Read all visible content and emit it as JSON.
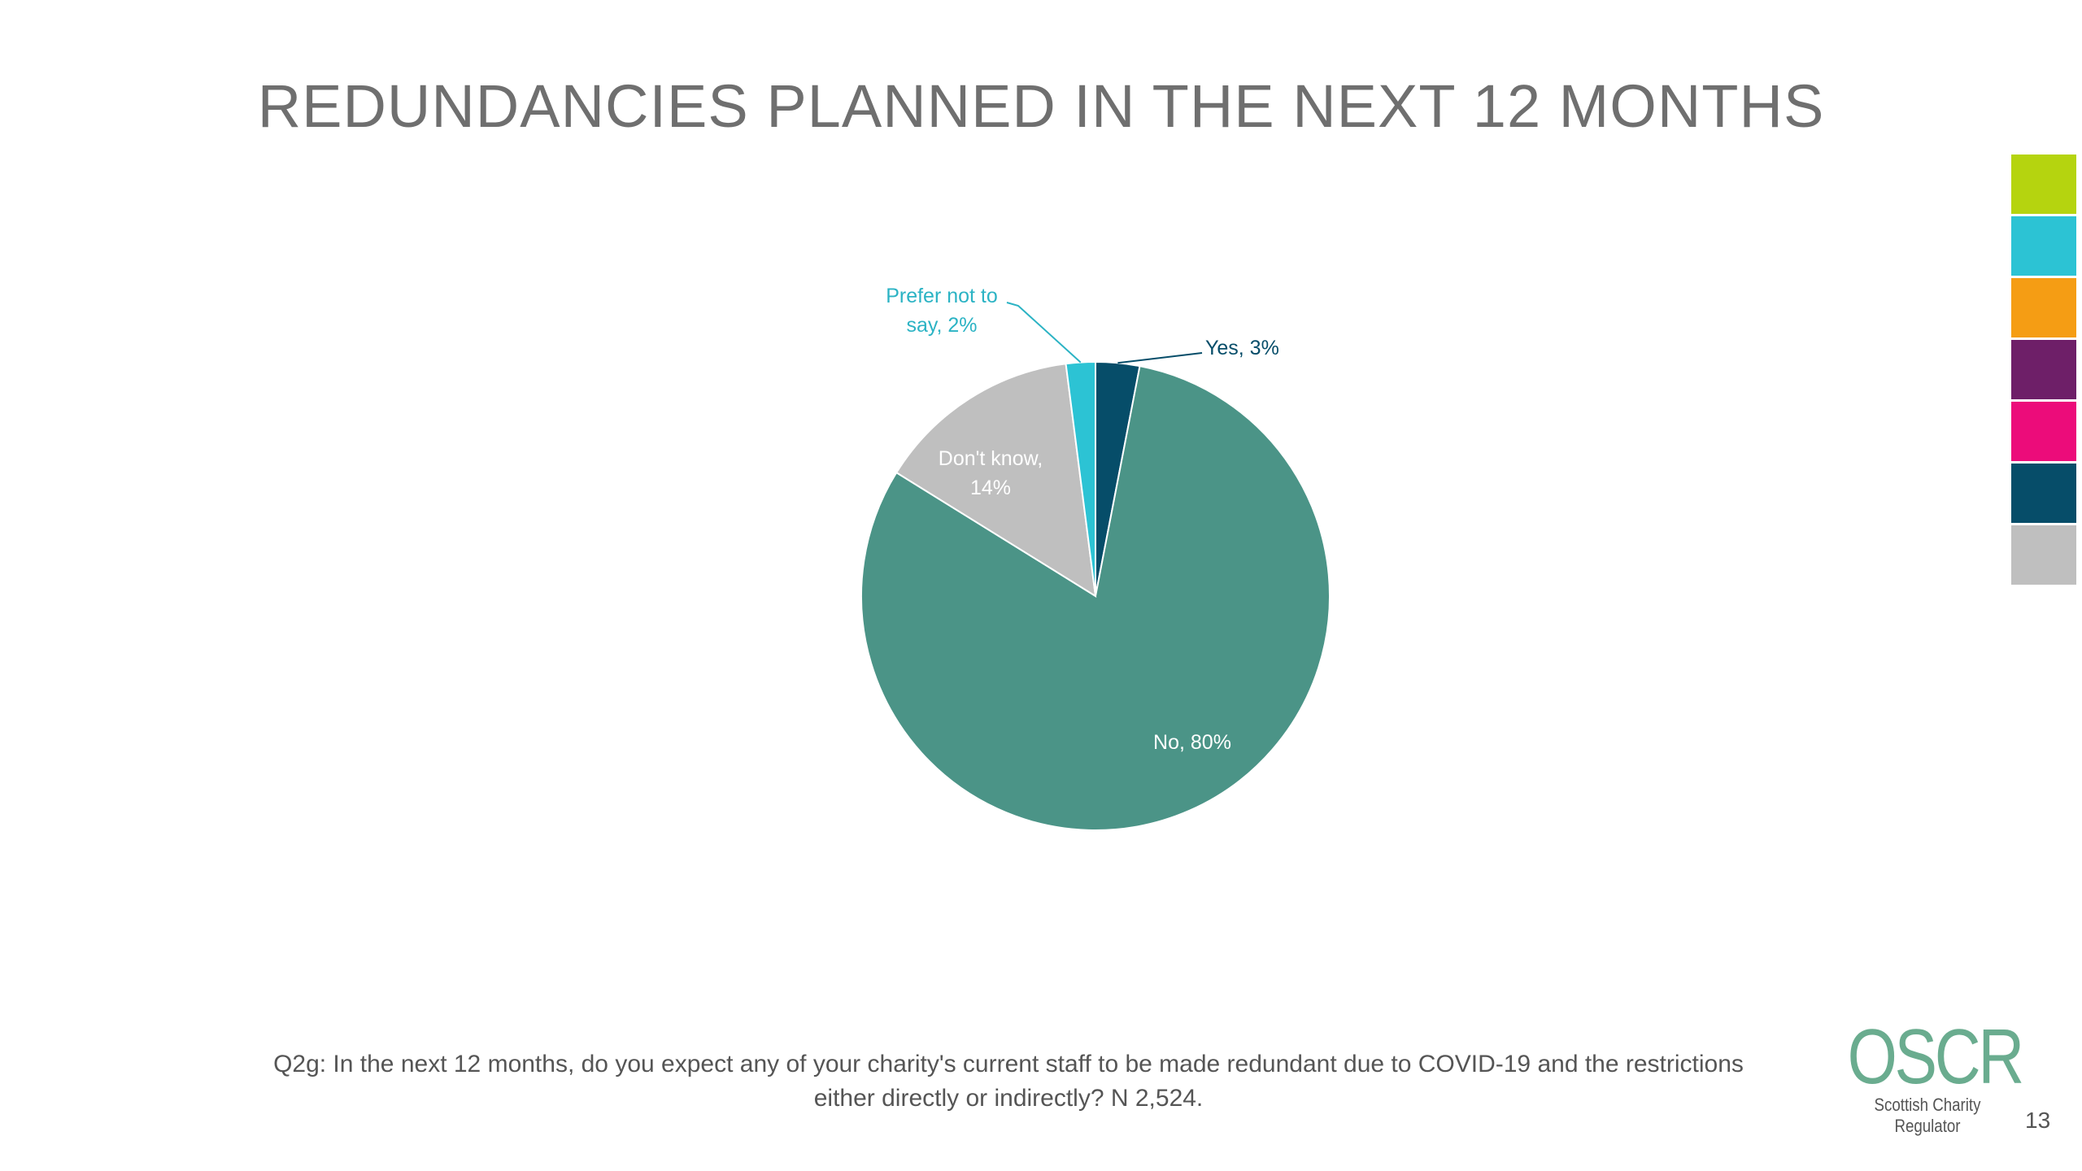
{
  "title": "REDUNDANCIES PLANNED IN THE NEXT 12 MONTHS",
  "chart_data": {
    "type": "pie",
    "title": "",
    "slices": [
      {
        "label": "Yes",
        "value": 3,
        "display": "Yes, 3%",
        "color": "#064d69"
      },
      {
        "label": "No",
        "value": 80,
        "display": "No, 80%",
        "color": "#4b9487"
      },
      {
        "label": "Don't know",
        "value": 14,
        "display_lines": [
          "Don't know,",
          "14%"
        ],
        "color": "#bfbfbf"
      },
      {
        "label": "Prefer not to say",
        "value": 2,
        "display_lines": [
          "Prefer not to",
          "say, 2%"
        ],
        "color": "#2cc3d4"
      }
    ],
    "start": "12 o'clock, clockwise"
  },
  "side_swatches": [
    "#b5d40f",
    "#2cc3d4",
    "#f59d14",
    "#6e1f68",
    "#ec0c7a",
    "#064d69",
    "#bfbfbf"
  ],
  "footnote": {
    "line1": "Q2g: In the next 12 months, do you expect any of your charity's current staff to be made redundant due to COVID-19 and the restrictions",
    "line2": "either directly or indirectly? N 2,524."
  },
  "logo": {
    "name": "OSCR",
    "tagline": "Scottish Charity Regulator"
  },
  "page_number": "13"
}
